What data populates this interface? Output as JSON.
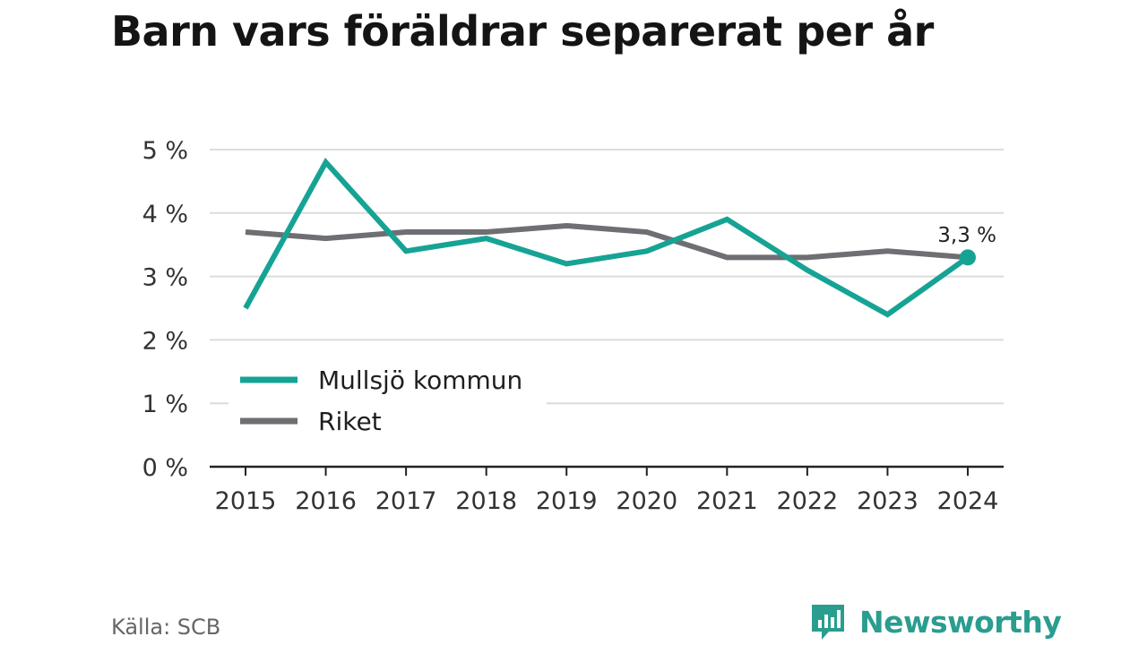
{
  "title": "Barn vars föräldrar separerat per år",
  "source": "Källa: SCB",
  "brand": {
    "name": "Newsworthy",
    "icon": "bar-chart-speech-bubble-icon",
    "color": "#2a9d8f"
  },
  "chart_data": {
    "type": "line",
    "x": [
      "2015",
      "2016",
      "2017",
      "2018",
      "2019",
      "2020",
      "2021",
      "2022",
      "2023",
      "2024"
    ],
    "series": [
      {
        "name": "Mullsjö kommun",
        "color": "#16a394",
        "values": [
          2.5,
          4.8,
          3.4,
          3.6,
          3.2,
          3.4,
          3.9,
          3.1,
          2.4,
          3.3
        ]
      },
      {
        "name": "Riket",
        "color": "#6e6e73",
        "values": [
          3.7,
          3.6,
          3.7,
          3.7,
          3.8,
          3.7,
          3.3,
          3.3,
          3.4,
          3.3
        ]
      }
    ],
    "ylim": [
      0,
      5
    ],
    "yticks": [
      "0 %",
      "1 %",
      "2 %",
      "3 %",
      "4 %",
      "5 %"
    ],
    "grid": true,
    "legend": "bottom-left",
    "annotation": {
      "series": 0,
      "index": 9,
      "text": "3,3 %"
    }
  }
}
